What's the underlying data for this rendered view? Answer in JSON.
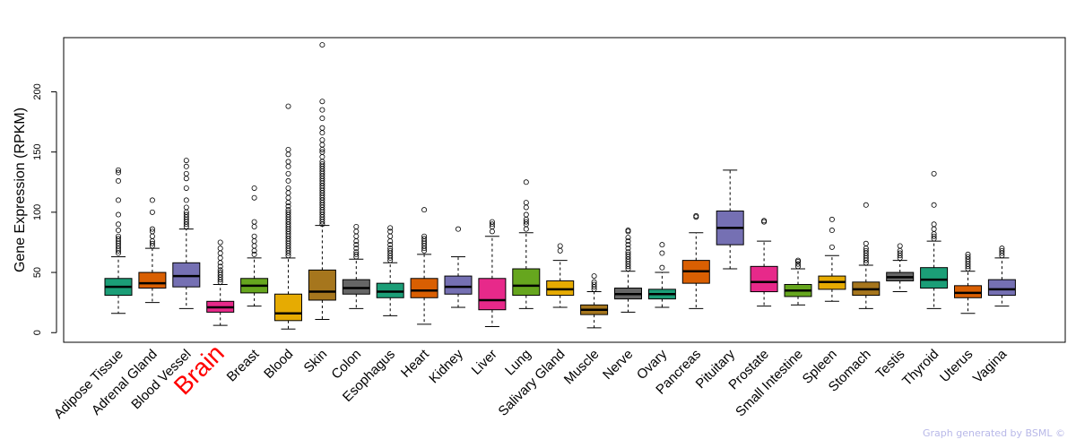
{
  "chart_data": {
    "type": "box",
    "ylabel": "Gene Expression (RPKM)",
    "xlabel": "",
    "ylim": [
      -8,
      245
    ],
    "yticks": [
      0,
      50,
      100,
      150,
      200
    ],
    "highlight_category": "Brain",
    "highlight_color": "#ff0000",
    "categories": [
      {
        "name": "Adipose Tissue",
        "color": "#1b9e77",
        "q1": 31,
        "median": 38,
        "q3": 45,
        "wlo": 16,
        "whi": 63,
        "outliers": [
          66,
          68,
          70,
          72,
          74,
          76,
          78,
          80,
          85,
          90,
          98,
          110,
          126,
          133,
          135
        ]
      },
      {
        "name": "Adrenal Gland",
        "color": "#d95f02",
        "q1": 37,
        "median": 41,
        "q3": 50,
        "wlo": 25,
        "whi": 70,
        "outliers": [
          72,
          74,
          76,
          80,
          84,
          86,
          100,
          110
        ]
      },
      {
        "name": "Blood Vessel",
        "color": "#7570b3",
        "q1": 38,
        "median": 47,
        "q3": 58,
        "wlo": 20,
        "whi": 86,
        "outliers": [
          88,
          90,
          92,
          94,
          96,
          98,
          100,
          104,
          110,
          120,
          128,
          132,
          138,
          143
        ]
      },
      {
        "name": "Brain",
        "color": "#e7298a",
        "q1": 17,
        "median": 21,
        "q3": 26,
        "wlo": 6,
        "whi": 40,
        "outliers": [
          42,
          44,
          46,
          48,
          50,
          52,
          55,
          58,
          62,
          66,
          70,
          75
        ]
      },
      {
        "name": "Breast",
        "color": "#66a61e",
        "q1": 33,
        "median": 39,
        "q3": 45,
        "wlo": 22,
        "whi": 62,
        "outliers": [
          65,
          68,
          72,
          76,
          80,
          88,
          92,
          112,
          120
        ]
      },
      {
        "name": "Blood",
        "color": "#e6ab02",
        "q1": 10,
        "median": 16,
        "q3": 32,
        "wlo": 3,
        "whi": 62,
        "outliers": [
          64,
          66,
          68,
          70,
          72,
          74,
          76,
          78,
          80,
          82,
          84,
          86,
          88,
          90,
          92,
          94,
          96,
          98,
          100,
          102,
          105,
          108,
          112,
          116,
          120,
          126,
          132,
          138,
          142,
          148,
          152,
          188
        ]
      },
      {
        "name": "Skin",
        "color": "#a6761d",
        "q1": 27,
        "median": 34,
        "q3": 52,
        "wlo": 11,
        "whi": 89,
        "outliers": [
          90,
          92,
          94,
          96,
          98,
          100,
          102,
          104,
          106,
          108,
          110,
          112,
          114,
          116,
          118,
          120,
          122,
          124,
          126,
          128,
          130,
          132,
          134,
          136,
          138,
          140,
          142,
          146,
          150,
          152,
          156,
          160,
          166,
          170,
          178,
          185,
          192,
          239
        ]
      },
      {
        "name": "Colon",
        "color": "#666666",
        "q1": 32,
        "median": 37,
        "q3": 44,
        "wlo": 20,
        "whi": 61,
        "outliers": [
          63,
          65,
          67,
          70,
          73,
          76,
          80,
          84,
          88
        ]
      },
      {
        "name": "Esophagus",
        "color": "#1b9e77",
        "q1": 29,
        "median": 34,
        "q3": 41,
        "wlo": 14,
        "whi": 58,
        "outliers": [
          60,
          62,
          64,
          66,
          68,
          70,
          73,
          76,
          80,
          84,
          87
        ]
      },
      {
        "name": "Heart",
        "color": "#d95f02",
        "q1": 29,
        "median": 35,
        "q3": 45,
        "wlo": 7,
        "whi": 65,
        "outliers": [
          68,
          70,
          72,
          74,
          76,
          78,
          80,
          102
        ]
      },
      {
        "name": "Kidney",
        "color": "#7570b3",
        "q1": 32,
        "median": 38,
        "q3": 47,
        "wlo": 21,
        "whi": 63,
        "outliers": [
          86
        ]
      },
      {
        "name": "Liver",
        "color": "#e7298a",
        "q1": 19,
        "median": 27,
        "q3": 45,
        "wlo": 5,
        "whi": 80,
        "outliers": [
          84,
          88,
          90,
          92
        ]
      },
      {
        "name": "Lung",
        "color": "#66a61e",
        "q1": 31,
        "median": 39,
        "q3": 53,
        "wlo": 20,
        "whi": 83,
        "outliers": [
          86,
          90,
          92,
          94,
          98,
          104,
          108,
          125
        ]
      },
      {
        "name": "Salivary Gland",
        "color": "#e6ab02",
        "q1": 31,
        "median": 36,
        "q3": 43,
        "wlo": 21,
        "whi": 60,
        "outliers": [
          68,
          72
        ]
      },
      {
        "name": "Muscle",
        "color": "#a6761d",
        "q1": 15,
        "median": 19,
        "q3": 23,
        "wlo": 4,
        "whi": 34,
        "outliers": [
          36,
          38,
          40,
          42,
          47
        ]
      },
      {
        "name": "Nerve",
        "color": "#666666",
        "q1": 28,
        "median": 32,
        "q3": 37,
        "wlo": 17,
        "whi": 51,
        "outliers": [
          53,
          55,
          57,
          59,
          61,
          63,
          65,
          67,
          70,
          73,
          76,
          79,
          84,
          85
        ]
      },
      {
        "name": "Ovary",
        "color": "#1b9e77",
        "q1": 28,
        "median": 32,
        "q3": 36,
        "wlo": 21,
        "whi": 50,
        "outliers": [
          54,
          66,
          73
        ]
      },
      {
        "name": "Pancreas",
        "color": "#d95f02",
        "q1": 41,
        "median": 51,
        "q3": 60,
        "wlo": 20,
        "whi": 83,
        "outliers": [
          96,
          97
        ]
      },
      {
        "name": "Pituitary",
        "color": "#7570b3",
        "q1": 73,
        "median": 87,
        "q3": 101,
        "wlo": 53,
        "whi": 135,
        "outliers": []
      },
      {
        "name": "Prostate",
        "color": "#e7298a",
        "q1": 34,
        "median": 42,
        "q3": 55,
        "wlo": 22,
        "whi": 76,
        "outliers": [
          92,
          93
        ]
      },
      {
        "name": "Small Intestine",
        "color": "#66a61e",
        "q1": 30,
        "median": 35,
        "q3": 40,
        "wlo": 23,
        "whi": 53,
        "outliers": [
          55,
          57,
          59,
          60
        ]
      },
      {
        "name": "Spleen",
        "color": "#e6ab02",
        "q1": 36,
        "median": 42,
        "q3": 47,
        "wlo": 26,
        "whi": 64,
        "outliers": [
          71,
          85,
          94
        ]
      },
      {
        "name": "Stomach",
        "color": "#a6761d",
        "q1": 31,
        "median": 36,
        "q3": 42,
        "wlo": 20,
        "whi": 56,
        "outliers": [
          58,
          60,
          62,
          64,
          66,
          68,
          70,
          74,
          106
        ]
      },
      {
        "name": "Testis",
        "color": "#666666",
        "q1": 43,
        "median": 46,
        "q3": 50,
        "wlo": 34,
        "whi": 60,
        "outliers": [
          62,
          64,
          66,
          68,
          72
        ]
      },
      {
        "name": "Thyroid",
        "color": "#1b9e77",
        "q1": 37,
        "median": 44,
        "q3": 54,
        "wlo": 20,
        "whi": 76,
        "outliers": [
          78,
          80,
          82,
          86,
          90,
          106,
          132
        ]
      },
      {
        "name": "Uterus",
        "color": "#d95f02",
        "q1": 29,
        "median": 33,
        "q3": 39,
        "wlo": 16,
        "whi": 51,
        "outliers": [
          53,
          55,
          57,
          59,
          61,
          63,
          65
        ]
      },
      {
        "name": "Vagina",
        "color": "#7570b3",
        "q1": 31,
        "median": 36,
        "q3": 44,
        "wlo": 22,
        "whi": 62,
        "outliers": [
          64,
          66,
          68,
          70
        ]
      }
    ]
  },
  "footer": "Graph generated by BSML ©"
}
